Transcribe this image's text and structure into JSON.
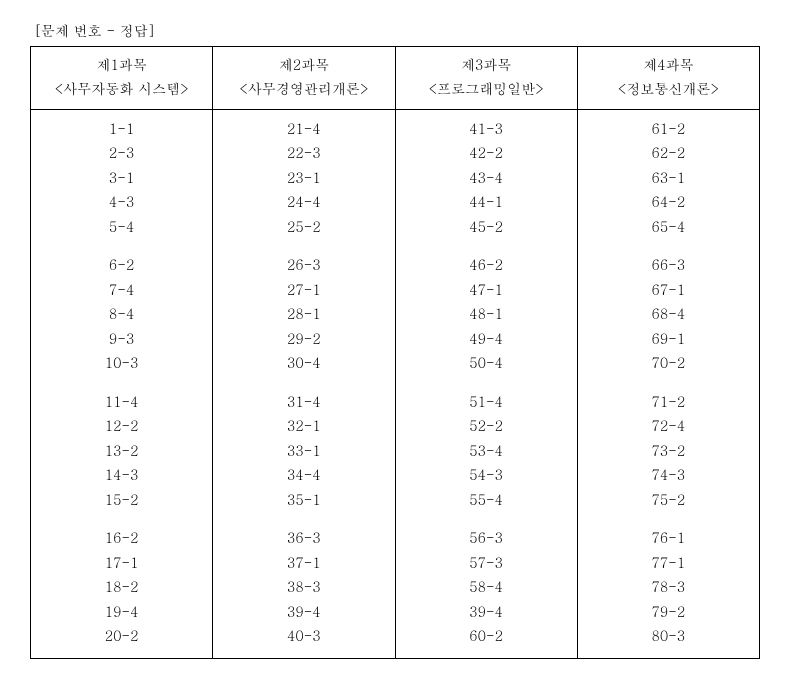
{
  "title": "[문제 번호 - 정답]",
  "columns": [
    {
      "name": "제1과목",
      "sub": "<사무자동화 시스템>"
    },
    {
      "name": "제2과목",
      "sub": "<사무경영관리개론>"
    },
    {
      "name": "제3과목",
      "sub": "<프로그래밍일반>"
    },
    {
      "name": "제4과목",
      "sub": "<정보통신개론>"
    }
  ],
  "blocks": [
    {
      "rows": [
        [
          "1-1",
          "21-4",
          "41-3",
          "61-2"
        ],
        [
          "2-3",
          "22-3",
          "42-2",
          "62-2"
        ],
        [
          "3-1",
          "23-1",
          "43-4",
          "63-1"
        ],
        [
          "4-3",
          "24-4",
          "44-1",
          "64-2"
        ],
        [
          "5-4",
          "25-2",
          "45-2",
          "65-4"
        ]
      ]
    },
    {
      "rows": [
        [
          "6-2",
          "26-3",
          "46-2",
          "66-3"
        ],
        [
          "7-4",
          "27-1",
          "47-1",
          "67-1"
        ],
        [
          "8-4",
          "28-1",
          "48-1",
          "68-4"
        ],
        [
          "9-3",
          "29-2",
          "49-4",
          "69-1"
        ],
        [
          "10-3",
          "30-4",
          "50-4",
          "70-2"
        ]
      ]
    },
    {
      "rows": [
        [
          "11-4",
          "31-4",
          "51-4",
          "71-2"
        ],
        [
          "12-2",
          "32-1",
          "52-2",
          "72-4"
        ],
        [
          "13-2",
          "33-1",
          "53-4",
          "73-2"
        ],
        [
          "14-3",
          "34-4",
          "54-3",
          "74-3"
        ],
        [
          "15-2",
          "35-1",
          "55-4",
          "75-2"
        ]
      ]
    },
    {
      "rows": [
        [
          "16-2",
          "36-3",
          "56-3",
          "76-1"
        ],
        [
          "17-1",
          "37-1",
          "57-3",
          "77-1"
        ],
        [
          "18-2",
          "38-3",
          "58-4",
          "78-3"
        ],
        [
          "19-4",
          "39-4",
          "39-4",
          "79-2"
        ],
        [
          "20-2",
          "40-3",
          "60-2",
          "80-3"
        ]
      ]
    }
  ]
}
